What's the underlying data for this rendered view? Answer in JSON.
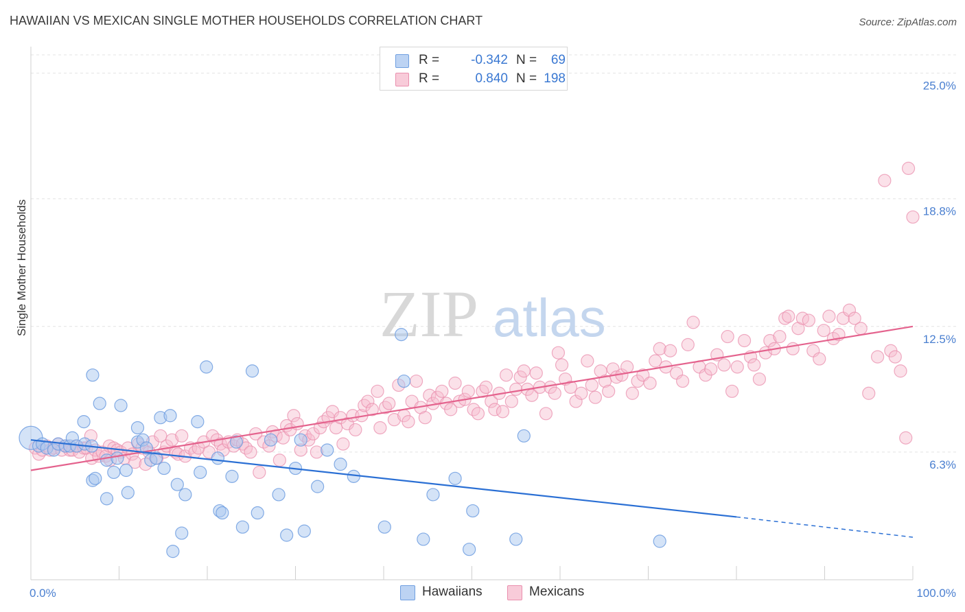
{
  "header": {
    "title": "HAWAIIAN VS MEXICAN SINGLE MOTHER HOUSEHOLDS CORRELATION CHART",
    "source": "Source: ZipAtlas.com"
  },
  "watermark": {
    "zip": "ZIP",
    "atlas": "atlas"
  },
  "legend": {
    "hawaiians": {
      "r_label": "R =",
      "r_value": "-0.342",
      "n_label": "N =",
      "n_value": "69"
    },
    "mexicans": {
      "r_label": "R =",
      "r_value": "0.840",
      "n_label": "N =",
      "n_value": "198"
    }
  },
  "bottom_legend": {
    "hawaiians": "Hawaiians",
    "mexicans": "Mexicans"
  },
  "colors": {
    "hawaiians_fill": "#aac8f0",
    "hawaiians_stroke": "#6e9ee0",
    "hawaiians_line": "#2a6fd4",
    "mexicans_fill": "#f6bccf",
    "mexicans_stroke": "#ea8fae",
    "mexicans_line": "#e4628d",
    "tick_text": "#4a7fd0"
  },
  "chart_data": {
    "type": "scatter",
    "title": "HAWAIIAN VS MEXICAN SINGLE MOTHER HOUSEHOLDS CORRELATION CHART",
    "xlabel": "",
    "ylabel": "Single Mother Households",
    "xlim": [
      0,
      100
    ],
    "ylim": [
      0,
      25.9
    ],
    "x_tick_labels": [
      "0.0%",
      "100.0%"
    ],
    "y_ticks": [
      6.3,
      12.5,
      18.8,
      25.0
    ],
    "y_tick_labels": [
      "6.3%",
      "12.5%",
      "18.8%",
      "25.0%"
    ],
    "series": [
      {
        "name": "Hawaiians",
        "r": -0.342,
        "n": 69,
        "trend": {
          "x0": 0,
          "y0": 6.9,
          "x1": 80,
          "y1": 3.1,
          "dashed_to_x": 100,
          "dashed_to_y": 2.1
        },
        "points": [
          [
            0.0,
            7.0
          ],
          [
            0.9,
            6.6
          ],
          [
            1.3,
            6.7
          ],
          [
            1.8,
            6.5
          ],
          [
            2.6,
            6.4
          ],
          [
            3.1,
            6.7
          ],
          [
            3.9,
            6.6
          ],
          [
            4.4,
            6.6
          ],
          [
            4.7,
            7.0
          ],
          [
            5.2,
            6.6
          ],
          [
            6.1,
            6.7
          ],
          [
            6.0,
            7.8
          ],
          [
            6.9,
            6.6
          ],
          [
            7.0,
            10.1
          ],
          [
            7.0,
            4.9
          ],
          [
            7.3,
            5.0
          ],
          [
            7.8,
            8.7
          ],
          [
            8.6,
            5.9
          ],
          [
            8.6,
            4.0
          ],
          [
            9.4,
            5.3
          ],
          [
            9.8,
            6.0
          ],
          [
            10.2,
            8.6
          ],
          [
            10.8,
            5.4
          ],
          [
            11.0,
            4.3
          ],
          [
            12.1,
            7.5
          ],
          [
            12.1,
            6.8
          ],
          [
            12.7,
            6.9
          ],
          [
            13.1,
            6.5
          ],
          [
            13.6,
            5.9
          ],
          [
            14.2,
            6.0
          ],
          [
            14.7,
            8.0
          ],
          [
            15.1,
            5.5
          ],
          [
            15.8,
            8.1
          ],
          [
            16.1,
            1.4
          ],
          [
            16.6,
            4.7
          ],
          [
            17.1,
            2.3
          ],
          [
            17.5,
            4.2
          ],
          [
            18.9,
            7.8
          ],
          [
            19.2,
            5.3
          ],
          [
            19.9,
            10.5
          ],
          [
            21.2,
            6.0
          ],
          [
            21.4,
            3.4
          ],
          [
            21.7,
            3.3
          ],
          [
            22.8,
            5.1
          ],
          [
            23.3,
            6.8
          ],
          [
            24.0,
            2.6
          ],
          [
            25.1,
            10.3
          ],
          [
            25.7,
            3.3
          ],
          [
            27.2,
            6.9
          ],
          [
            28.1,
            4.2
          ],
          [
            29.0,
            2.2
          ],
          [
            30.0,
            5.5
          ],
          [
            30.6,
            6.9
          ],
          [
            31.0,
            2.4
          ],
          [
            32.5,
            4.6
          ],
          [
            33.6,
            6.4
          ],
          [
            35.1,
            5.7
          ],
          [
            36.6,
            5.1
          ],
          [
            40.1,
            2.6
          ],
          [
            42.0,
            12.1
          ],
          [
            42.3,
            9.8
          ],
          [
            44.5,
            2.0
          ],
          [
            45.6,
            4.2
          ],
          [
            48.1,
            5.0
          ],
          [
            50.1,
            3.4
          ],
          [
            49.7,
            1.5
          ],
          [
            55.0,
            2.0
          ],
          [
            55.9,
            7.1
          ],
          [
            71.3,
            1.9
          ]
        ]
      },
      {
        "name": "Mexicans",
        "r": 0.84,
        "n": 198,
        "trend": {
          "x0": 0,
          "y0": 5.4,
          "x1": 100,
          "y1": 12.5
        },
        "points": [
          [
            0.5,
            6.5
          ],
          [
            0.9,
            6.2
          ],
          [
            1.3,
            6.4
          ],
          [
            1.8,
            6.6
          ],
          [
            2.2,
            6.4
          ],
          [
            2.6,
            6.5
          ],
          [
            3.1,
            6.7
          ],
          [
            3.5,
            6.4
          ],
          [
            4.0,
            6.6
          ],
          [
            4.4,
            6.4
          ],
          [
            4.7,
            6.4
          ],
          [
            5.1,
            6.6
          ],
          [
            5.5,
            6.3
          ],
          [
            6.0,
            6.5
          ],
          [
            6.3,
            6.5
          ],
          [
            6.8,
            7.1
          ],
          [
            6.9,
            6.0
          ],
          [
            7.3,
            6.4
          ],
          [
            7.7,
            6.1
          ],
          [
            8.1,
            6.3
          ],
          [
            8.5,
            6.1
          ],
          [
            8.9,
            6.6
          ],
          [
            9.0,
            5.9
          ],
          [
            9.4,
            6.5
          ],
          [
            9.8,
            6.4
          ],
          [
            10.2,
            6.3
          ],
          [
            10.6,
            6.0
          ],
          [
            11.0,
            6.5
          ],
          [
            11.5,
            6.2
          ],
          [
            11.8,
            5.8
          ],
          [
            12.2,
            6.7
          ],
          [
            12.6,
            6.5
          ],
          [
            13.0,
            5.7
          ],
          [
            13.4,
            6.3
          ],
          [
            13.8,
            6.8
          ],
          [
            14.3,
            6.0
          ],
          [
            14.7,
            7.1
          ],
          [
            15.1,
            6.3
          ],
          [
            15.4,
            6.6
          ],
          [
            16.0,
            6.9
          ],
          [
            16.4,
            6.3
          ],
          [
            16.7,
            6.2
          ],
          [
            17.1,
            7.1
          ],
          [
            17.5,
            6.1
          ],
          [
            18.1,
            6.5
          ],
          [
            18.6,
            6.3
          ],
          [
            19.0,
            6.5
          ],
          [
            19.6,
            6.8
          ],
          [
            20.2,
            6.3
          ],
          [
            20.6,
            7.1
          ],
          [
            21.1,
            6.9
          ],
          [
            21.5,
            6.7
          ],
          [
            21.8,
            6.4
          ],
          [
            22.4,
            6.8
          ],
          [
            23.0,
            6.6
          ],
          [
            23.4,
            6.9
          ],
          [
            24.0,
            6.7
          ],
          [
            24.4,
            6.5
          ],
          [
            24.9,
            6.3
          ],
          [
            25.5,
            7.2
          ],
          [
            25.9,
            5.3
          ],
          [
            26.4,
            6.8
          ],
          [
            27.0,
            6.6
          ],
          [
            27.4,
            7.3
          ],
          [
            27.8,
            7.1
          ],
          [
            28.2,
            5.9
          ],
          [
            28.6,
            7.0
          ],
          [
            29.0,
            7.6
          ],
          [
            29.4,
            7.4
          ],
          [
            29.8,
            8.1
          ],
          [
            30.2,
            7.7
          ],
          [
            30.6,
            6.4
          ],
          [
            31.1,
            7.1
          ],
          [
            31.5,
            6.9
          ],
          [
            32.0,
            7.2
          ],
          [
            32.4,
            6.3
          ],
          [
            32.8,
            7.5
          ],
          [
            33.2,
            7.8
          ],
          [
            33.7,
            8.0
          ],
          [
            34.2,
            8.3
          ],
          [
            34.6,
            7.5
          ],
          [
            35.1,
            8.0
          ],
          [
            35.4,
            6.7
          ],
          [
            35.9,
            7.7
          ],
          [
            36.5,
            8.1
          ],
          [
            36.8,
            7.4
          ],
          [
            37.5,
            8.1
          ],
          [
            37.8,
            8.6
          ],
          [
            38.2,
            8.8
          ],
          [
            38.7,
            8.4
          ],
          [
            39.3,
            9.3
          ],
          [
            39.6,
            7.5
          ],
          [
            40.2,
            8.5
          ],
          [
            40.6,
            8.7
          ],
          [
            41.2,
            7.9
          ],
          [
            41.7,
            9.6
          ],
          [
            42.3,
            8.1
          ],
          [
            42.8,
            7.8
          ],
          [
            43.2,
            8.8
          ],
          [
            43.7,
            9.8
          ],
          [
            44.2,
            8.5
          ],
          [
            44.7,
            8.0
          ],
          [
            45.2,
            9.1
          ],
          [
            45.6,
            8.7
          ],
          [
            46.1,
            9.0
          ],
          [
            46.6,
            9.3
          ],
          [
            47.1,
            8.7
          ],
          [
            47.6,
            8.4
          ],
          [
            48.1,
            9.7
          ],
          [
            48.6,
            8.8
          ],
          [
            49.2,
            8.9
          ],
          [
            49.6,
            9.3
          ],
          [
            50.2,
            8.4
          ],
          [
            50.7,
            8.2
          ],
          [
            51.2,
            9.3
          ],
          [
            51.6,
            9.5
          ],
          [
            52.2,
            8.8
          ],
          [
            52.6,
            8.4
          ],
          [
            53.1,
            9.2
          ],
          [
            53.5,
            8.3
          ],
          [
            53.9,
            10.1
          ],
          [
            54.5,
            8.8
          ],
          [
            55.0,
            9.4
          ],
          [
            55.5,
            10.0
          ],
          [
            55.9,
            10.3
          ],
          [
            56.3,
            9.4
          ],
          [
            56.8,
            9.1
          ],
          [
            57.3,
            10.2
          ],
          [
            57.7,
            9.5
          ],
          [
            58.4,
            8.2
          ],
          [
            58.9,
            9.5
          ],
          [
            59.4,
            9.2
          ],
          [
            59.8,
            11.2
          ],
          [
            60.2,
            10.6
          ],
          [
            60.6,
            9.9
          ],
          [
            61.2,
            9.5
          ],
          [
            61.8,
            8.8
          ],
          [
            62.4,
            9.2
          ],
          [
            63.1,
            10.8
          ],
          [
            63.6,
            9.6
          ],
          [
            64.0,
            9.0
          ],
          [
            64.6,
            10.3
          ],
          [
            65.1,
            9.8
          ],
          [
            65.5,
            9.3
          ],
          [
            66.0,
            10.4
          ],
          [
            66.4,
            10.0
          ],
          [
            67.0,
            10.1
          ],
          [
            67.6,
            10.5
          ],
          [
            68.2,
            9.2
          ],
          [
            68.8,
            9.8
          ],
          [
            69.4,
            10.1
          ],
          [
            70.2,
            9.7
          ],
          [
            70.8,
            10.8
          ],
          [
            71.3,
            11.4
          ],
          [
            72.0,
            10.5
          ],
          [
            72.5,
            11.3
          ],
          [
            73.2,
            10.2
          ],
          [
            73.9,
            9.8
          ],
          [
            74.5,
            11.6
          ],
          [
            75.1,
            12.7
          ],
          [
            75.8,
            10.5
          ],
          [
            76.5,
            10.1
          ],
          [
            77.1,
            10.4
          ],
          [
            77.8,
            11.1
          ],
          [
            78.6,
            10.6
          ],
          [
            79.0,
            12.0
          ],
          [
            79.5,
            9.3
          ],
          [
            80.1,
            10.5
          ],
          [
            80.9,
            11.8
          ],
          [
            81.6,
            11.0
          ],
          [
            82.0,
            10.6
          ],
          [
            82.6,
            9.9
          ],
          [
            83.3,
            11.2
          ],
          [
            83.8,
            11.8
          ],
          [
            84.3,
            11.4
          ],
          [
            84.9,
            12.0
          ],
          [
            85.5,
            12.9
          ],
          [
            85.9,
            13.0
          ],
          [
            86.4,
            11.4
          ],
          [
            87.0,
            12.4
          ],
          [
            87.5,
            12.9
          ],
          [
            88.2,
            12.8
          ],
          [
            88.7,
            11.3
          ],
          [
            89.4,
            10.9
          ],
          [
            89.9,
            12.3
          ],
          [
            90.5,
            13.0
          ],
          [
            91.0,
            11.9
          ],
          [
            91.6,
            12.1
          ],
          [
            92.1,
            12.9
          ],
          [
            92.8,
            13.3
          ],
          [
            93.4,
            12.9
          ],
          [
            94.1,
            12.4
          ],
          [
            95.0,
            9.2
          ],
          [
            96.0,
            11.0
          ],
          [
            96.8,
            19.7
          ],
          [
            97.5,
            11.3
          ],
          [
            98.0,
            11.0
          ],
          [
            98.6,
            10.3
          ],
          [
            99.2,
            7.0
          ],
          [
            99.5,
            20.3
          ],
          [
            100.0,
            17.9
          ]
        ]
      }
    ]
  }
}
